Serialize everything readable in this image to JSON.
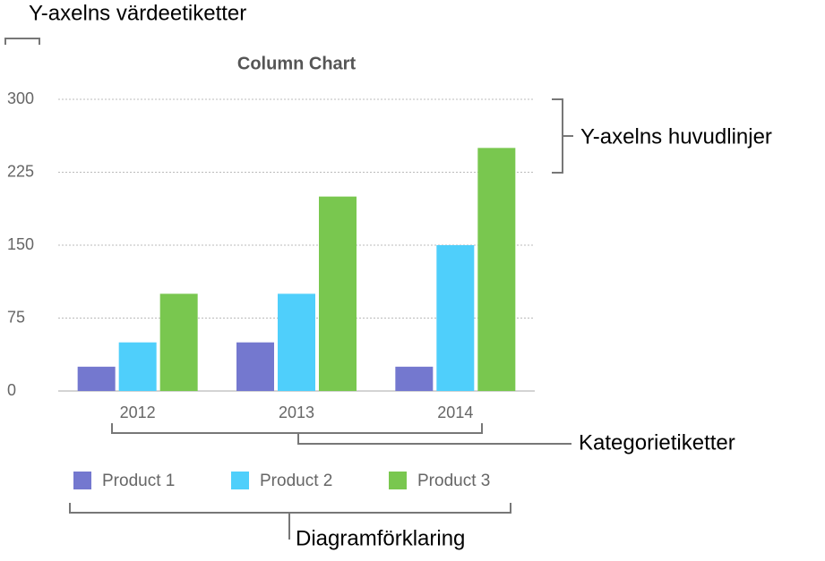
{
  "chart_data": {
    "type": "bar",
    "title": "Column Chart",
    "categories": [
      "2012",
      "2013",
      "2014"
    ],
    "series": [
      {
        "name": "Product 1",
        "color": "#7478cf",
        "values": [
          25,
          50,
          25
        ]
      },
      {
        "name": "Product 2",
        "color": "#4fcffb",
        "values": [
          50,
          100,
          150
        ]
      },
      {
        "name": "Product 3",
        "color": "#79c74f",
        "values": [
          100,
          200,
          250
        ]
      }
    ],
    "ylim": [
      0,
      300
    ],
    "yticks": [
      0,
      75,
      150,
      225,
      300
    ],
    "grid": true,
    "legend": "bottom",
    "annotations": [
      "Y-axelns värdeetiketter",
      "Y-axelns huvudlinjer",
      "Kategorietiketter",
      "Diagramförklaring"
    ]
  }
}
